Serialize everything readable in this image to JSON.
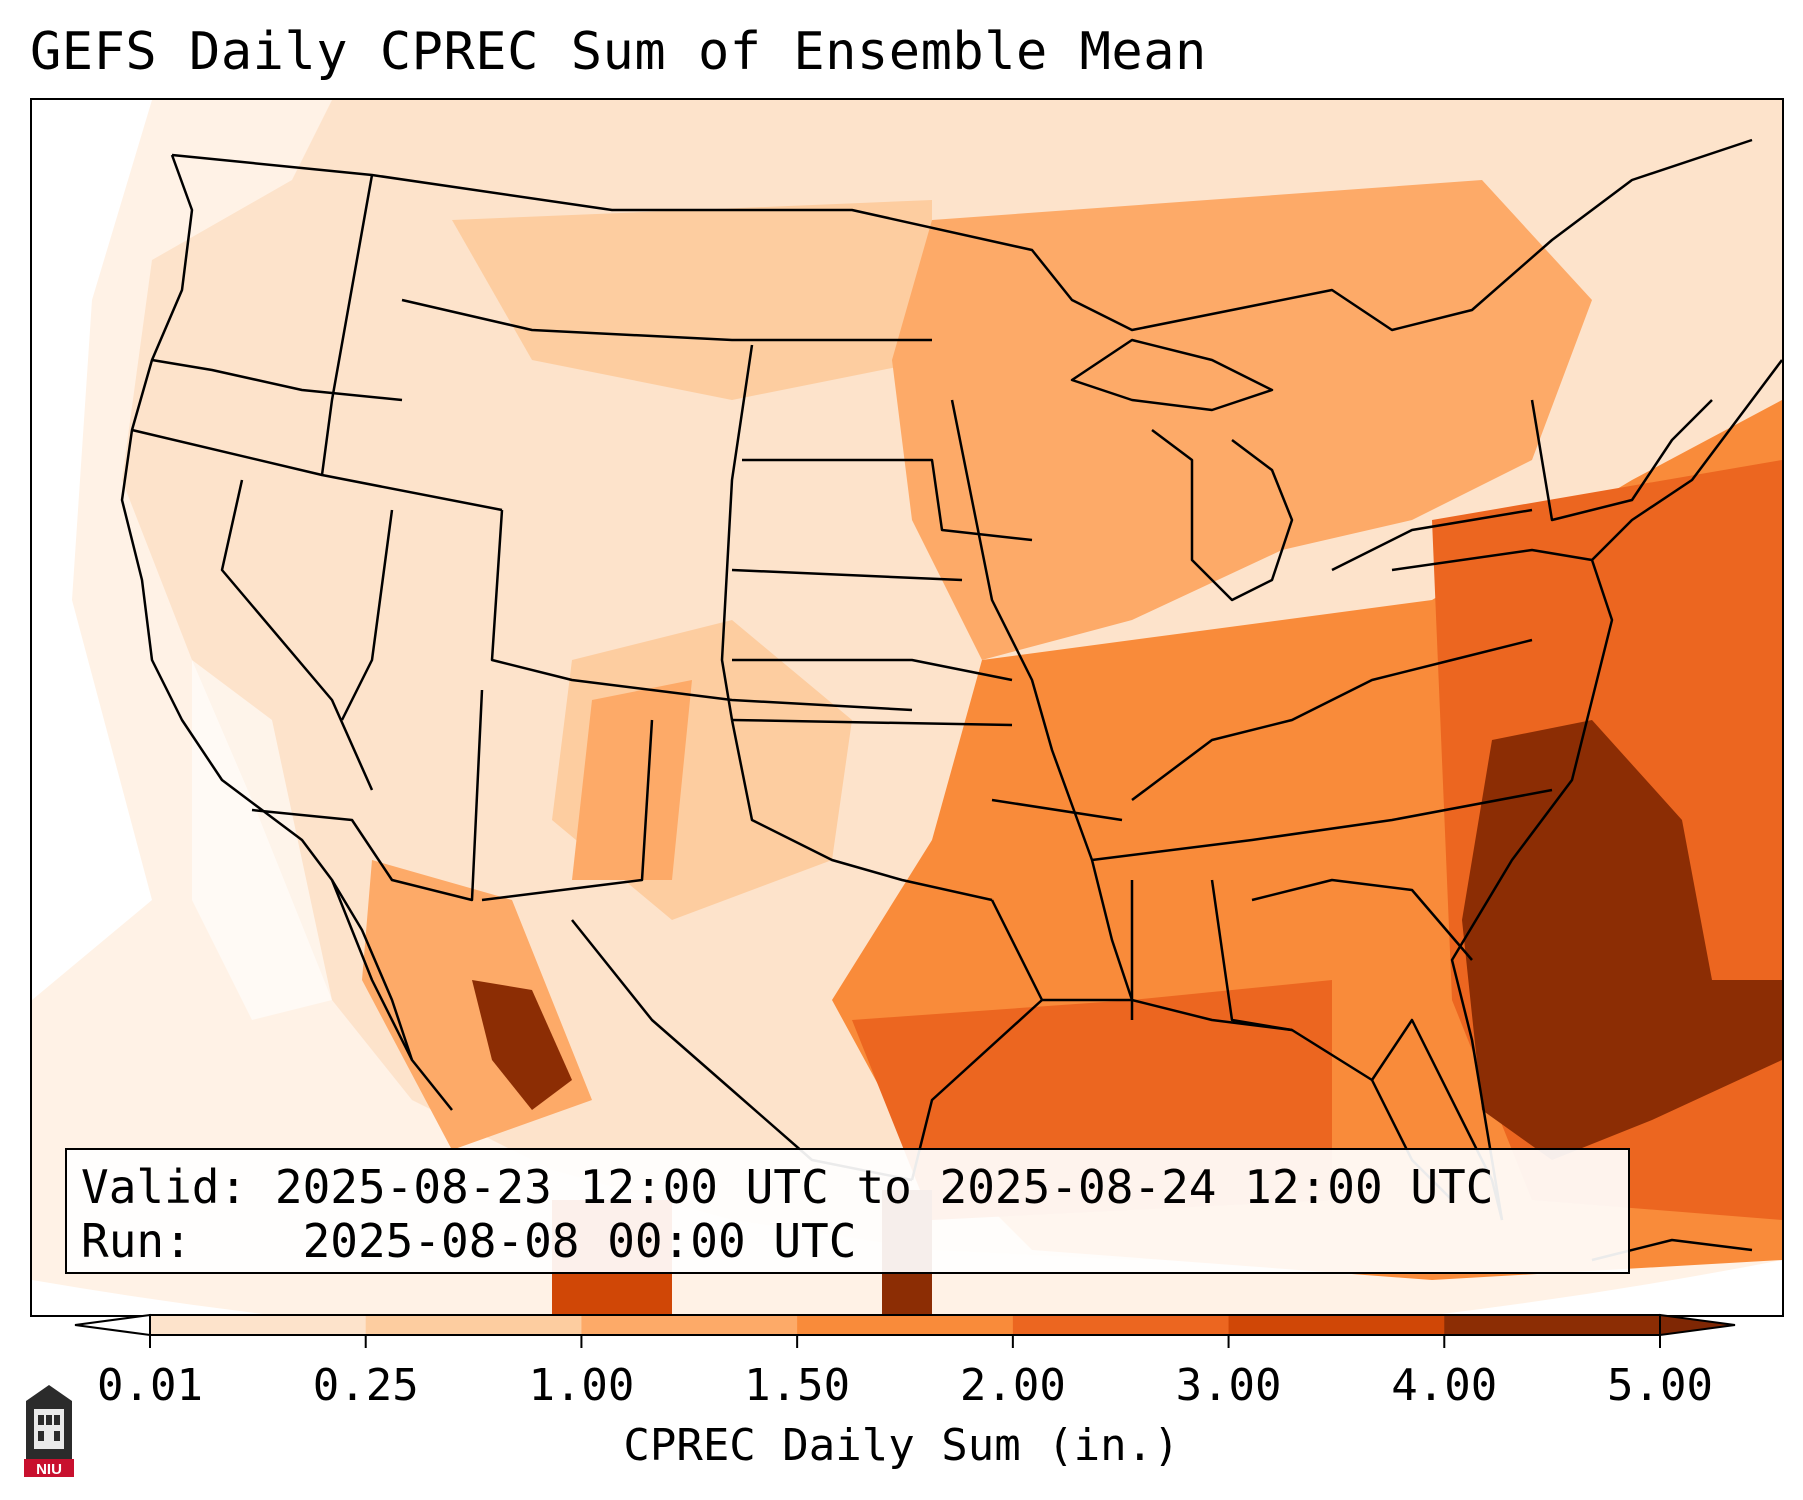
{
  "title": "GEFS Daily CPREC Sum of Ensemble Mean",
  "info": {
    "valid_label": "Valid:",
    "valid_value": "2025-08-23 12:00 UTC to 2025-08-24 12:00 UTC",
    "run_label": "Run:",
    "run_value": "2025-08-08 00:00 UTC"
  },
  "colorbar": {
    "label": "CPREC Daily Sum (in.)",
    "ticks": [
      "0.01",
      "0.25",
      "1.00",
      "1.50",
      "2.00",
      "3.00",
      "4.00",
      "5.00"
    ],
    "colors": [
      "#fff2e6",
      "#fde3cb",
      "#fdcda0",
      "#fdaa68",
      "#f98b3a",
      "#ec6620",
      "#d04706",
      "#8c2d04"
    ],
    "under_color": "#ffffff",
    "over_color": "#7f2704"
  },
  "logo": {
    "text": "NIU",
    "icon": "niu-logo"
  },
  "map": {
    "region": "Contiguous United States",
    "colors": {
      "background": "#fde3cb",
      "very_light": "#fff2e6",
      "light": "#fdcda0",
      "medium": "#fdaa68",
      "medium_dark": "#f98b3a",
      "dark": "#ec6620",
      "darker": "#d04706",
      "darkest": "#8c2d04"
    }
  }
}
